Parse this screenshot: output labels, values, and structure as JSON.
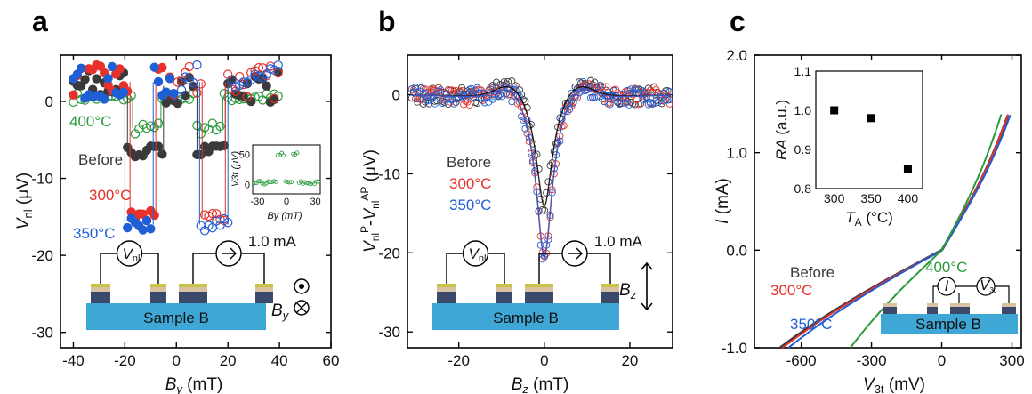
{
  "figure": {
    "panels": [
      {
        "letter": "a"
      },
      {
        "letter": "b"
      },
      {
        "letter": "c"
      }
    ],
    "sample_label": "Sample B",
    "current_label": "1.0 mA",
    "vnl_symbol": "V",
    "vnl_sub": "nl"
  },
  "colors": {
    "before": "#3a3a3a",
    "t300": "#e8312a",
    "t350": "#1f5fd6",
    "t400": "#2a9a3c",
    "substrate": "#3fa7d6",
    "contact": "#c9c34a",
    "layer_dark": "#3b4a6b",
    "layer_light": "#d9c2a0"
  },
  "chart_data": [
    {
      "type": "scatter",
      "panel": "a",
      "xlabel": "By (mT)",
      "ylabel": "Vnl (μV)",
      "xlim": [
        -45,
        60
      ],
      "ylim": [
        -32,
        6
      ],
      "xticks": [
        -40,
        -20,
        0,
        20,
        40,
        60
      ],
      "yticks": [
        -30,
        -20,
        -10,
        0
      ],
      "ytick_labels": [
        "-30",
        "-20",
        "-10",
        "0"
      ],
      "series": [
        {
          "name": "400°C",
          "color_key": "t400",
          "baseline": 0.5,
          "dip": -3.5,
          "dip_left": [
            -17,
            -6
          ],
          "dip_right": [
            8,
            18
          ]
        },
        {
          "name": "Before",
          "color_key": "before",
          "baseline": 2.0,
          "dip": -6.5,
          "dip_left": [
            -19,
            -5
          ],
          "dip_right": [
            8,
            19
          ]
        },
        {
          "name": "300°C",
          "color_key": "t300",
          "baseline": 2.5,
          "dip": -15.0,
          "dip_left": [
            -18,
            -8
          ],
          "dip_right": [
            10,
            19
          ]
        },
        {
          "name": "350°C",
          "color_key": "t350",
          "baseline": 2.5,
          "dip": -16.0,
          "dip_left": [
            -20,
            -9
          ],
          "dip_right": [
            9,
            20
          ]
        }
      ],
      "labels_order": [
        "400°C",
        "Before",
        "300°C",
        "350°C"
      ],
      "field_symbol": "By",
      "inset": {
        "xlabel": "By (mT)",
        "ylabel": "V3t (μV)",
        "xticks": [
          -30,
          0,
          30
        ],
        "yticks": [
          0,
          50
        ],
        "xlim": [
          -35,
          35
        ],
        "ylim": [
          -15,
          65
        ]
      }
    },
    {
      "type": "scatter",
      "panel": "b",
      "xlabel": "Bz (mT)",
      "ylabel": "Vnl^P - Vnl^AP (μV)",
      "xlim": [
        -32,
        30
      ],
      "ylim": [
        -32,
        5
      ],
      "xticks": [
        -20,
        0,
        20
      ],
      "yticks": [
        -30,
        -20,
        -10,
        0
      ],
      "ytick_labels": [
        "-30",
        "-20",
        "-10",
        "0"
      ],
      "series": [
        {
          "name": "Before",
          "color_key": "before",
          "depth": -13.0
        },
        {
          "name": "300°C",
          "color_key": "t300",
          "depth": -18.5
        },
        {
          "name": "350°C",
          "color_key": "t350",
          "depth": -18.8
        }
      ],
      "labels_order": [
        "Before",
        "300°C",
        "350°C"
      ],
      "field_symbol": "Bz"
    },
    {
      "type": "line",
      "panel": "c",
      "xlabel": "V3t (mV)",
      "ylabel": "I (mA)",
      "xlim": [
        -800,
        340
      ],
      "ylim": [
        -1.0,
        2.0
      ],
      "xticks": [
        -600,
        -300,
        0,
        300
      ],
      "yticks": [
        -1.0,
        0.0,
        1.0,
        2.0
      ],
      "ytick_labels": [
        "-1.0",
        "0.0",
        "1.0",
        "2.0"
      ],
      "series": [
        {
          "name": "Before",
          "color_key": "before",
          "neg_end": -690,
          "pos_end": 285
        },
        {
          "name": "300°C",
          "color_key": "t300",
          "neg_end": -680,
          "pos_end": 285
        },
        {
          "name": "350°C",
          "color_key": "t350",
          "neg_end": -655,
          "pos_end": 295
        },
        {
          "name": "400°C",
          "color_key": "t400",
          "neg_end": -390,
          "pos_end": 255
        }
      ],
      "labels_order": [
        "Before",
        "300°C",
        "350°C",
        "400°C"
      ],
      "inset": {
        "type": "scatter",
        "xlabel": "TA (°C)",
        "ylabel": "RA (a.u.)",
        "xlim": [
          275,
          420
        ],
        "ylim": [
          0.8,
          1.1
        ],
        "xticks": [
          300,
          350,
          400
        ],
        "yticks": [
          0.8,
          0.9,
          1.0,
          1.1
        ],
        "ytick_labels": [
          "0.8",
          "0.9",
          "1.0",
          "1.1"
        ],
        "x": [
          300,
          350,
          400
        ],
        "y": [
          1.0,
          0.98,
          0.85
        ]
      },
      "circuit_labels": [
        "I",
        "V3t"
      ]
    }
  ]
}
